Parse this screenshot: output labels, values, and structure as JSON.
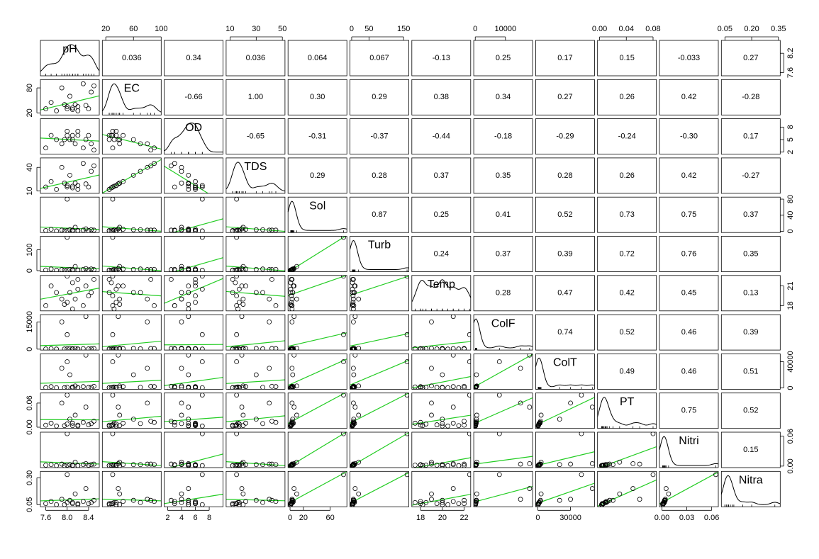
{
  "chart_data": {
    "type": "scatter_matrix",
    "point_color": "#000000",
    "fit_color": "#22cc22",
    "density_color": "#000000",
    "variables": [
      {
        "name": "pH",
        "lim": [
          7.5,
          8.6
        ],
        "ticks": [
          7.6,
          {
            "value": 8,
            "label": "8.0"
          },
          8.4
        ],
        "axis_ticks": [
          7.6,
          8.2
        ],
        "values": [
          7.6,
          7.7,
          7.8,
          7.9,
          8.0,
          8.0,
          8.05,
          8.1,
          8.1,
          8.15,
          8.2,
          8.2,
          8.3,
          8.35,
          8.4,
          8.45,
          8.5,
          7.95
        ],
        "correlations": [
          0.036,
          0.34,
          0.036,
          0.064,
          0.067,
          -0.13,
          0.25,
          0.17,
          0.15,
          -0.033,
          0.27
        ]
      },
      {
        "name": "EC",
        "lim": [
          15,
          100
        ],
        "ticks": [
          20,
          60,
          100
        ],
        "axis_ticks": [
          20,
          80
        ],
        "values": [
          30,
          45,
          25,
          80,
          30,
          35,
          60,
          28,
          32,
          40,
          25,
          35,
          90,
          38,
          30,
          70,
          85,
          40
        ],
        "correlations": [
          -0.66,
          {
            "value": 1,
            "label": "1.00"
          },
          {
            "value": 0.3,
            "label": "0.30"
          },
          0.29,
          0.38,
          0.34,
          0.27,
          0.26,
          0.42,
          -0.28
        ]
      },
      {
        "name": "OD",
        "lim": [
          1.5,
          10
        ],
        "ticks": [
          2,
          4,
          6,
          8
        ],
        "axis_ticks": [
          2,
          5,
          8
        ],
        "values": [
          3,
          6,
          5,
          4,
          7,
          6,
          5,
          6,
          5,
          4,
          6,
          7,
          3,
          5,
          6,
          4,
          2.5,
          5
        ],
        "correlations": [
          -0.65,
          -0.31,
          -0.37,
          -0.44,
          -0.18,
          -0.29,
          -0.24,
          {
            "value": -0.3,
            "label": "-0.30"
          },
          0.17
        ]
      },
      {
        "name": "TDS",
        "lim": [
          7,
          52
        ],
        "ticks": [
          10,
          30,
          50
        ],
        "axis_ticks": [
          10,
          40
        ],
        "values": [
          15,
          22,
          12,
          40,
          15,
          17,
          30,
          14,
          16,
          20,
          12,
          17,
          45,
          19,
          15,
          35,
          42,
          20
        ],
        "correlations": [
          0.29,
          0.28,
          0.37,
          0.35,
          0.28,
          0.26,
          0.42,
          -0.27
        ]
      },
      {
        "name": "Sol",
        "lim": [
          -3,
          85
        ],
        "ticks": [
          0,
          20,
          60
        ],
        "axis_ticks": [
          0,
          40,
          80
        ],
        "values": [
          2,
          5,
          1,
          3,
          80,
          2,
          4,
          1,
          3,
          10,
          2,
          1,
          3,
          6,
          2,
          4,
          3,
          1
        ],
        "correlations": [
          0.87,
          0.25,
          0.41,
          0.52,
          0.73,
          0.75,
          0.37
        ]
      },
      {
        "name": "Turb",
        "lim": [
          -5,
          165
        ],
        "ticks": [
          0,
          50,
          150
        ],
        "axis_ticks": [
          0,
          100
        ],
        "values": [
          3,
          8,
          2,
          5,
          160,
          4,
          6,
          2,
          5,
          20,
          3,
          2,
          6,
          10,
          4,
          8,
          5,
          3
        ],
        "correlations": [
          0.24,
          0.37,
          0.39,
          0.72,
          0.76,
          0.35
        ]
      },
      {
        "name": "Temp",
        "lim": [
          17.2,
          22.6
        ],
        "ticks": [
          18,
          20,
          22
        ],
        "axis_ticks": [
          18,
          21
        ],
        "values": [
          18,
          21,
          20,
          19,
          22.5,
          18.5,
          20,
          21.5,
          17.5,
          19,
          22,
          20.5,
          18,
          21,
          19.5,
          20,
          22,
          18.2
        ],
        "correlations": [
          0.28,
          0.47,
          0.42,
          0.45,
          0.13
        ]
      },
      {
        "name": "ColF",
        "lim": [
          -500,
          19000
        ],
        "ticks": [
          0,
          10000
        ],
        "axis_ticks": [
          0,
          15000
        ],
        "values": [
          100,
          300,
          50,
          15000,
          8000,
          200,
          400,
          100,
          250,
          500,
          100,
          50,
          300,
          18000,
          150,
          200,
          350,
          100
        ],
        "correlations": [
          0.74,
          0.52,
          0.46,
          0.39
        ]
      },
      {
        "name": "ColT",
        "lim": [
          -2000,
          52000
        ],
        "ticks": [
          0,
          30000
        ],
        "axis_ticks": [
          0,
          40000
        ],
        "values": [
          500,
          2000,
          300,
          30000,
          40000,
          1000,
          20000,
          400,
          1500,
          3000,
          600,
          300,
          2000,
          50000,
          800,
          1000,
          2500,
          400
        ],
        "correlations": [
          0.49,
          0.46,
          0.51
        ]
      },
      {
        "name": "PT",
        "lim": [
          -0.003,
          0.085
        ],
        "ticks": [
          {
            "value": 0,
            "label": "0.00"
          },
          0.04,
          0.08
        ],
        "axis_ticks": [
          {
            "value": 0,
            "label": "0.00"
          },
          0.06
        ],
        "values": [
          0.005,
          0.01,
          0.003,
          0.06,
          0.08,
          0.008,
          0.02,
          0.004,
          0.01,
          0.03,
          0.005,
          0.003,
          0.012,
          0.05,
          0.006,
          0.009,
          0.015,
          0.004
        ],
        "correlations": [
          0.75,
          0.52
        ]
      },
      {
        "name": "Nitri",
        "lim": [
          -0.003,
          0.068
        ],
        "ticks": [
          {
            "value": 0,
            "label": "0.00"
          },
          0.03,
          0.06
        ],
        "axis_ticks": [
          {
            "value": 0,
            "label": "0.00"
          },
          0.06
        ],
        "values": [
          0.002,
          0.003,
          0.001,
          0.004,
          0.065,
          0.002,
          0.003,
          0.001,
          0.002,
          0.008,
          0.001,
          0.001,
          0.003,
          0.005,
          0.002,
          0.003,
          0.004,
          0.001
        ],
        "correlations": [
          0.15
        ]
      },
      {
        "name": "Nitra",
        "lim": [
          0.03,
          0.36
        ],
        "ticks": [
          0.05,
          {
            "value": 0.2,
            "label": "0.20"
          },
          0.35
        ],
        "axis_ticks": [
          0.05,
          {
            "value": 0.3,
            "label": "0.30"
          }
        ],
        "values": [
          0.06,
          0.08,
          0.05,
          0.1,
          0.33,
          0.07,
          0.09,
          0.06,
          0.07,
          0.15,
          0.06,
          0.05,
          0.08,
          0.2,
          0.06,
          0.07,
          0.09,
          0.05
        ],
        "correlations": []
      }
    ]
  }
}
